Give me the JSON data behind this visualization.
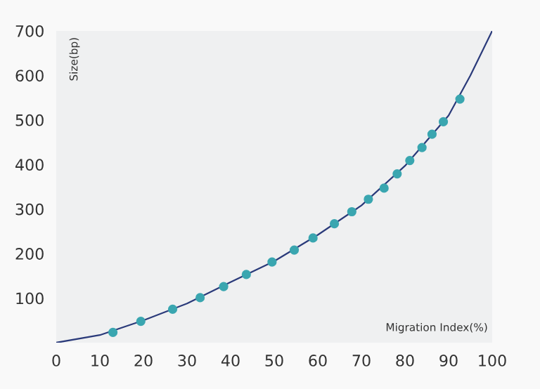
{
  "chart_data": {
    "type": "scatter",
    "xlabel": "Migration Index(%)",
    "ylabel": "Size(bp)",
    "xlim": [
      0,
      100
    ],
    "ylim": [
      0,
      700
    ],
    "xticks": [
      0,
      10,
      20,
      30,
      40,
      50,
      60,
      70,
      80,
      90,
      100
    ],
    "yticks": [
      100,
      200,
      300,
      400,
      500,
      600,
      700
    ],
    "grid": false,
    "series": [
      {
        "type": "line",
        "marker": "none",
        "color": "#2a3a7a",
        "x": [
          0,
          10,
          20,
          30,
          40,
          50,
          60,
          70,
          80,
          90,
          95,
          100
        ],
        "values": [
          0,
          17,
          50,
          88,
          136,
          183,
          242,
          308,
          397,
          510,
          600,
          700
        ]
      },
      {
        "marker": "circle",
        "color": "#3aa6b0",
        "x": [
          13.0,
          19.4,
          26.7,
          33.0,
          38.4,
          43.6,
          49.5,
          54.6,
          58.9,
          63.8,
          67.8,
          71.6,
          75.2,
          78.2,
          81.1,
          83.9,
          86.2,
          88.8,
          92.6
        ],
        "values": [
          23,
          48,
          75,
          101,
          126,
          153,
          181,
          208,
          235,
          267,
          294,
          322,
          347,
          379,
          409,
          438,
          468,
          496,
          547
        ]
      }
    ]
  }
}
